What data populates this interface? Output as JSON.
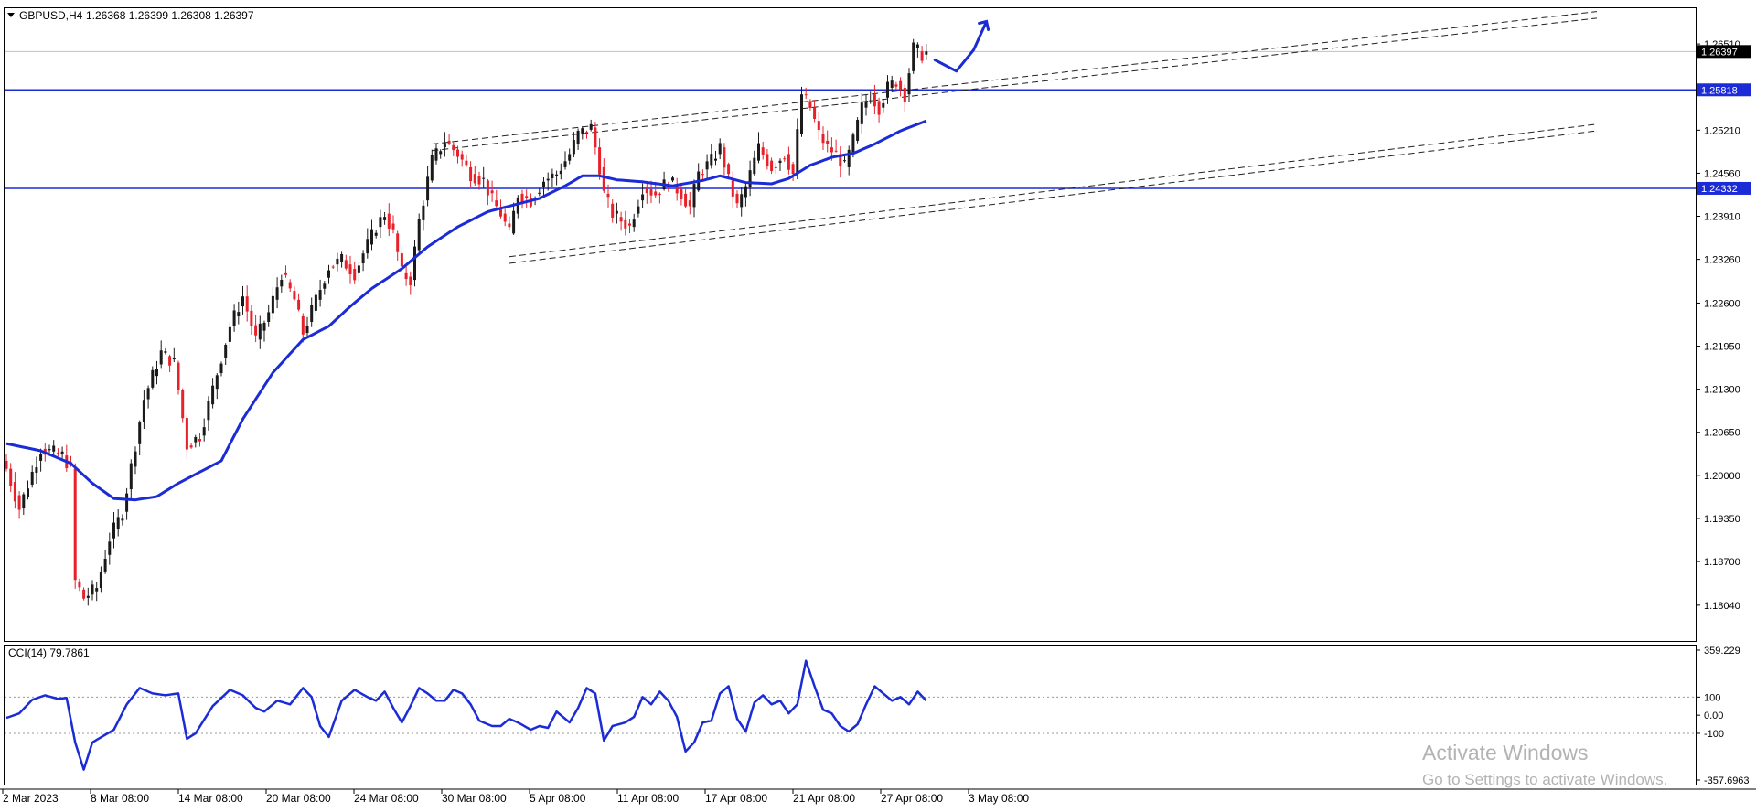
{
  "header": {
    "symbol_label": "GBPUSD,H4",
    "ohlc_label": "1.26368 1.26399 1.26308 1.26397"
  },
  "indicator": {
    "label": "CCI(14) 79.7861"
  },
  "watermark": {
    "line1": "Activate Windows",
    "line2": "Go to Settings to activate Windows."
  },
  "colors": {
    "bull": "#1a1a1a",
    "bear": "#e8202a",
    "ma": "#1b2bd6",
    "level": "#1b2bd6",
    "cci": "#1b2bd6",
    "grid": "#d0d0d0",
    "frame": "#000000"
  },
  "chart_data": [
    {
      "type": "candlestick",
      "ylim": [
        1.175,
        1.2705
      ],
      "y_ticks": [
        "1.26510",
        "1.25210",
        "1.24560",
        "1.23910",
        "1.23260",
        "1.22600",
        "1.21950",
        "1.21300",
        "1.20650",
        "1.20000",
        "1.19350",
        "1.18700",
        "1.18040"
      ],
      "x_ticks": [
        "2 Mar 2023",
        "8 Mar 08:00",
        "14 Mar 08:00",
        "20 Mar 08:00",
        "24 Mar 08:00",
        "30 Mar 08:00",
        "5 Apr 08:00",
        "11 Apr 08:00",
        "17 Apr 08:00",
        "21 Apr 08:00",
        "27 Apr 08:00",
        "3 May 08:00"
      ],
      "current_price": "1.26397",
      "horizontal_levels": [
        {
          "label": "1.25818",
          "value": 1.25818
        },
        {
          "label": "1.24332",
          "value": 1.24332
        }
      ],
      "close_waypoints": [
        [
          0,
          1.201
        ],
        [
          3,
          1.195
        ],
        [
          8,
          1.204
        ],
        [
          13,
          1.203
        ],
        [
          15,
          1.201
        ],
        [
          16,
          1.184
        ],
        [
          18,
          1.1815
        ],
        [
          21,
          1.183
        ],
        [
          24,
          1.1905
        ],
        [
          27,
          1.1945
        ],
        [
          32,
          1.2115
        ],
        [
          36,
          1.2185
        ],
        [
          39,
          1.217
        ],
        [
          42,
          1.2045
        ],
        [
          45,
          1.206
        ],
        [
          52,
          1.2225
        ],
        [
          55,
          1.227
        ],
        [
          58,
          1.2205
        ],
        [
          61,
          1.2245
        ],
        [
          64,
          1.2305
        ],
        [
          67,
          1.2265
        ],
        [
          69,
          1.2215
        ],
        [
          72,
          1.2265
        ],
        [
          75,
          1.2315
        ],
        [
          78,
          1.2325
        ],
        [
          81,
          1.2305
        ],
        [
          83,
          1.2335
        ],
        [
          86,
          1.2375
        ],
        [
          88,
          1.2395
        ],
        [
          90,
          1.2365
        ],
        [
          92,
          1.2305
        ],
        [
          94,
          1.2295
        ],
        [
          96,
          1.2385
        ],
        [
          97,
          1.2415
        ],
        [
          99,
          1.2475
        ],
        [
          102,
          1.2505
        ],
        [
          105,
          1.2485
        ],
        [
          108,
          1.2455
        ],
        [
          111,
          1.2445
        ],
        [
          113,
          1.2415
        ],
        [
          115,
          1.2395
        ],
        [
          117,
          1.2365
        ],
        [
          119,
          1.2425
        ],
        [
          122,
          1.2415
        ],
        [
          125,
          1.2445
        ],
        [
          128,
          1.2455
        ],
        [
          131,
          1.2485
        ],
        [
          133,
          1.2515
        ],
        [
          136,
          1.2525
        ],
        [
          138,
          1.2465
        ],
        [
          139,
          1.2425
        ],
        [
          141,
          1.2395
        ],
        [
          143,
          1.2385
        ],
        [
          145,
          1.2375
        ],
        [
          148,
          1.2435
        ],
        [
          151,
          1.2425
        ],
        [
          154,
          1.2445
        ],
        [
          157,
          1.2425
        ],
        [
          159,
          1.2405
        ],
        [
          161,
          1.2455
        ],
        [
          164,
          1.2475
        ],
        [
          166,
          1.2495
        ],
        [
          168,
          1.2445
        ],
        [
          170,
          1.2405
        ],
        [
          172,
          1.2435
        ],
        [
          175,
          1.2495
        ],
        [
          178,
          1.2465
        ],
        [
          181,
          1.2485
        ],
        [
          183,
          1.2455
        ],
        [
          185,
          1.2575
        ],
        [
          187,
          1.2555
        ],
        [
          189,
          1.2515
        ],
        [
          191,
          1.2495
        ],
        [
          193,
          1.2485
        ],
        [
          195,
          1.2465
        ],
        [
          197,
          1.2505
        ],
        [
          199,
          1.2555
        ],
        [
          201,
          1.2575
        ],
        [
          203,
          1.2555
        ],
        [
          205,
          1.2585
        ],
        [
          207,
          1.2595
        ],
        [
          209,
          1.2575
        ],
        [
          211,
          1.2645
        ],
        [
          213,
          1.2635
        ],
        [
          214,
          1.26397
        ]
      ],
      "moving_average_waypoints": [
        [
          0,
          1.2048
        ],
        [
          8,
          1.2037
        ],
        [
          15,
          1.2018
        ],
        [
          20,
          1.1988
        ],
        [
          25,
          1.1965
        ],
        [
          30,
          1.1963
        ],
        [
          35,
          1.1968
        ],
        [
          40,
          1.1988
        ],
        [
          45,
          1.2005
        ],
        [
          50,
          1.2022
        ],
        [
          55,
          1.2085
        ],
        [
          62,
          1.2155
        ],
        [
          69,
          1.2205
        ],
        [
          75,
          1.2225
        ],
        [
          80,
          1.2255
        ],
        [
          85,
          1.2282
        ],
        [
          92,
          1.2312
        ],
        [
          98,
          1.2345
        ],
        [
          105,
          1.2375
        ],
        [
          112,
          1.2398
        ],
        [
          118,
          1.2408
        ],
        [
          124,
          1.2418
        ],
        [
          130,
          1.2437
        ],
        [
          134,
          1.2452
        ],
        [
          138,
          1.2452
        ],
        [
          142,
          1.2446
        ],
        [
          148,
          1.2443
        ],
        [
          155,
          1.2437
        ],
        [
          162,
          1.2445
        ],
        [
          166,
          1.2452
        ],
        [
          172,
          1.2442
        ],
        [
          178,
          1.244
        ],
        [
          182,
          1.2448
        ],
        [
          187,
          1.2468
        ],
        [
          192,
          1.248
        ],
        [
          197,
          1.2486
        ],
        [
          202,
          1.25
        ],
        [
          208,
          1.252
        ],
        [
          214,
          1.2535
        ]
      ],
      "channel_lines": [
        {
          "x1": 99,
          "y1": 1.25,
          "x2": 370,
          "y2": 1.27
        },
        {
          "x1": 99,
          "y1": 1.249,
          "x2": 370,
          "y2": 1.269
        },
        {
          "x1": 117,
          "y1": 1.233,
          "x2": 370,
          "y2": 1.253
        },
        {
          "x1": 117,
          "y1": 1.232,
          "x2": 370,
          "y2": 1.252
        }
      ],
      "projection_path": [
        [
          216,
          1.2627
        ],
        [
          221,
          1.261
        ],
        [
          225,
          1.2642
        ],
        [
          228,
          1.2685
        ]
      ]
    },
    {
      "type": "line",
      "name": "CCI(14)",
      "ylim": [
        -357.6963,
        359.229
      ],
      "y_ticks": [
        "359.229",
        "100",
        "0.00",
        "-100",
        "-357.6963"
      ],
      "levels": [
        100,
        -100
      ],
      "waypoints": [
        [
          0,
          -15
        ],
        [
          3,
          10
        ],
        [
          6,
          85
        ],
        [
          9,
          110
        ],
        [
          12,
          90
        ],
        [
          14,
          95
        ],
        [
          16,
          -150
        ],
        [
          18,
          -300
        ],
        [
          20,
          -150
        ],
        [
          25,
          -80
        ],
        [
          28,
          60
        ],
        [
          31,
          150
        ],
        [
          34,
          120
        ],
        [
          37,
          110
        ],
        [
          40,
          120
        ],
        [
          42,
          -130
        ],
        [
          44,
          -100
        ],
        [
          48,
          50
        ],
        [
          52,
          140
        ],
        [
          55,
          110
        ],
        [
          58,
          40
        ],
        [
          60,
          20
        ],
        [
          63,
          80
        ],
        [
          66,
          60
        ],
        [
          69,
          150
        ],
        [
          71,
          100
        ],
        [
          73,
          -60
        ],
        [
          75,
          -120
        ],
        [
          78,
          80
        ],
        [
          81,
          140
        ],
        [
          84,
          100
        ],
        [
          86,
          80
        ],
        [
          88,
          130
        ],
        [
          90,
          40
        ],
        [
          92,
          -40
        ],
        [
          94,
          50
        ],
        [
          96,
          150
        ],
        [
          98,
          120
        ],
        [
          100,
          80
        ],
        [
          102,
          80
        ],
        [
          104,
          140
        ],
        [
          106,
          120
        ],
        [
          108,
          60
        ],
        [
          110,
          -30
        ],
        [
          113,
          -60
        ],
        [
          115,
          -60
        ],
        [
          117,
          -20
        ],
        [
          119,
          -40
        ],
        [
          122,
          -80
        ],
        [
          124,
          -60
        ],
        [
          126,
          -70
        ],
        [
          128,
          20
        ],
        [
          131,
          -40
        ],
        [
          133,
          40
        ],
        [
          135,
          150
        ],
        [
          137,
          120
        ],
        [
          139,
          -140
        ],
        [
          141,
          -60
        ],
        [
          144,
          -40
        ],
        [
          146,
          -10
        ],
        [
          148,
          100
        ],
        [
          150,
          60
        ],
        [
          152,
          130
        ],
        [
          154,
          80
        ],
        [
          156,
          -10
        ],
        [
          158,
          -200
        ],
        [
          160,
          -150
        ],
        [
          162,
          -40
        ],
        [
          164,
          -30
        ],
        [
          166,
          120
        ],
        [
          168,
          160
        ],
        [
          170,
          -20
        ],
        [
          172,
          -90
        ],
        [
          174,
          70
        ],
        [
          176,
          110
        ],
        [
          178,
          60
        ],
        [
          180,
          80
        ],
        [
          182,
          10
        ],
        [
          184,
          60
        ],
        [
          186,
          300
        ],
        [
          188,
          160
        ],
        [
          190,
          30
        ],
        [
          192,
          10
        ],
        [
          194,
          -60
        ],
        [
          196,
          -90
        ],
        [
          198,
          -50
        ],
        [
          200,
          60
        ],
        [
          202,
          160
        ],
        [
          204,
          120
        ],
        [
          206,
          80
        ],
        [
          208,
          100
        ],
        [
          210,
          60
        ],
        [
          212,
          130
        ],
        [
          214,
          79.7861
        ]
      ]
    }
  ]
}
